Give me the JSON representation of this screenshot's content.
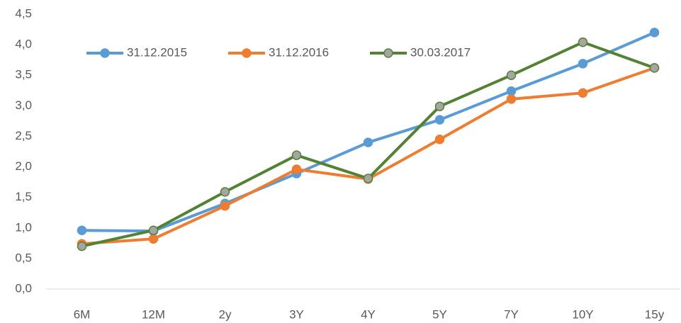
{
  "chart_data": {
    "type": "line",
    "categories": [
      "6M",
      "12M",
      "2y",
      "3Y",
      "4Y",
      "5Y",
      "7Y",
      "10Y",
      "15y"
    ],
    "series": [
      {
        "name": "31.12.2015",
        "color": "#5b9bd5",
        "marker_fill": "#5b9bd5",
        "values": [
          0.96,
          0.95,
          1.4,
          1.89,
          2.4,
          2.77,
          3.24,
          3.69,
          4.2
        ]
      },
      {
        "name": "31.12.2016",
        "color": "#ed7d31",
        "marker_fill": "#ed7d31",
        "values": [
          0.74,
          0.82,
          1.36,
          1.96,
          1.8,
          2.45,
          3.11,
          3.21,
          3.62
        ]
      },
      {
        "name": "30.03.2017",
        "color": "#548235",
        "marker_fill": "#a5a5a5",
        "values": [
          0.7,
          0.96,
          1.59,
          2.19,
          1.81,
          2.99,
          3.5,
          4.04,
          3.62
        ]
      }
    ],
    "ylim": [
      0,
      4.5
    ],
    "yticks": [
      {
        "value": 0,
        "label": "0,0"
      },
      {
        "value": 0.5,
        "label": "0,5"
      },
      {
        "value": 1,
        "label": "1,0"
      },
      {
        "value": 1.5,
        "label": "1,5"
      },
      {
        "value": 2,
        "label": "2,0"
      },
      {
        "value": 2.5,
        "label": "2,5"
      },
      {
        "value": 3,
        "label": "3,0"
      },
      {
        "value": 3.5,
        "label": "3,5"
      },
      {
        "value": 4,
        "label": "4,0"
      },
      {
        "value": 4.5,
        "label": "4,5"
      }
    ],
    "legend": "top-left"
  }
}
